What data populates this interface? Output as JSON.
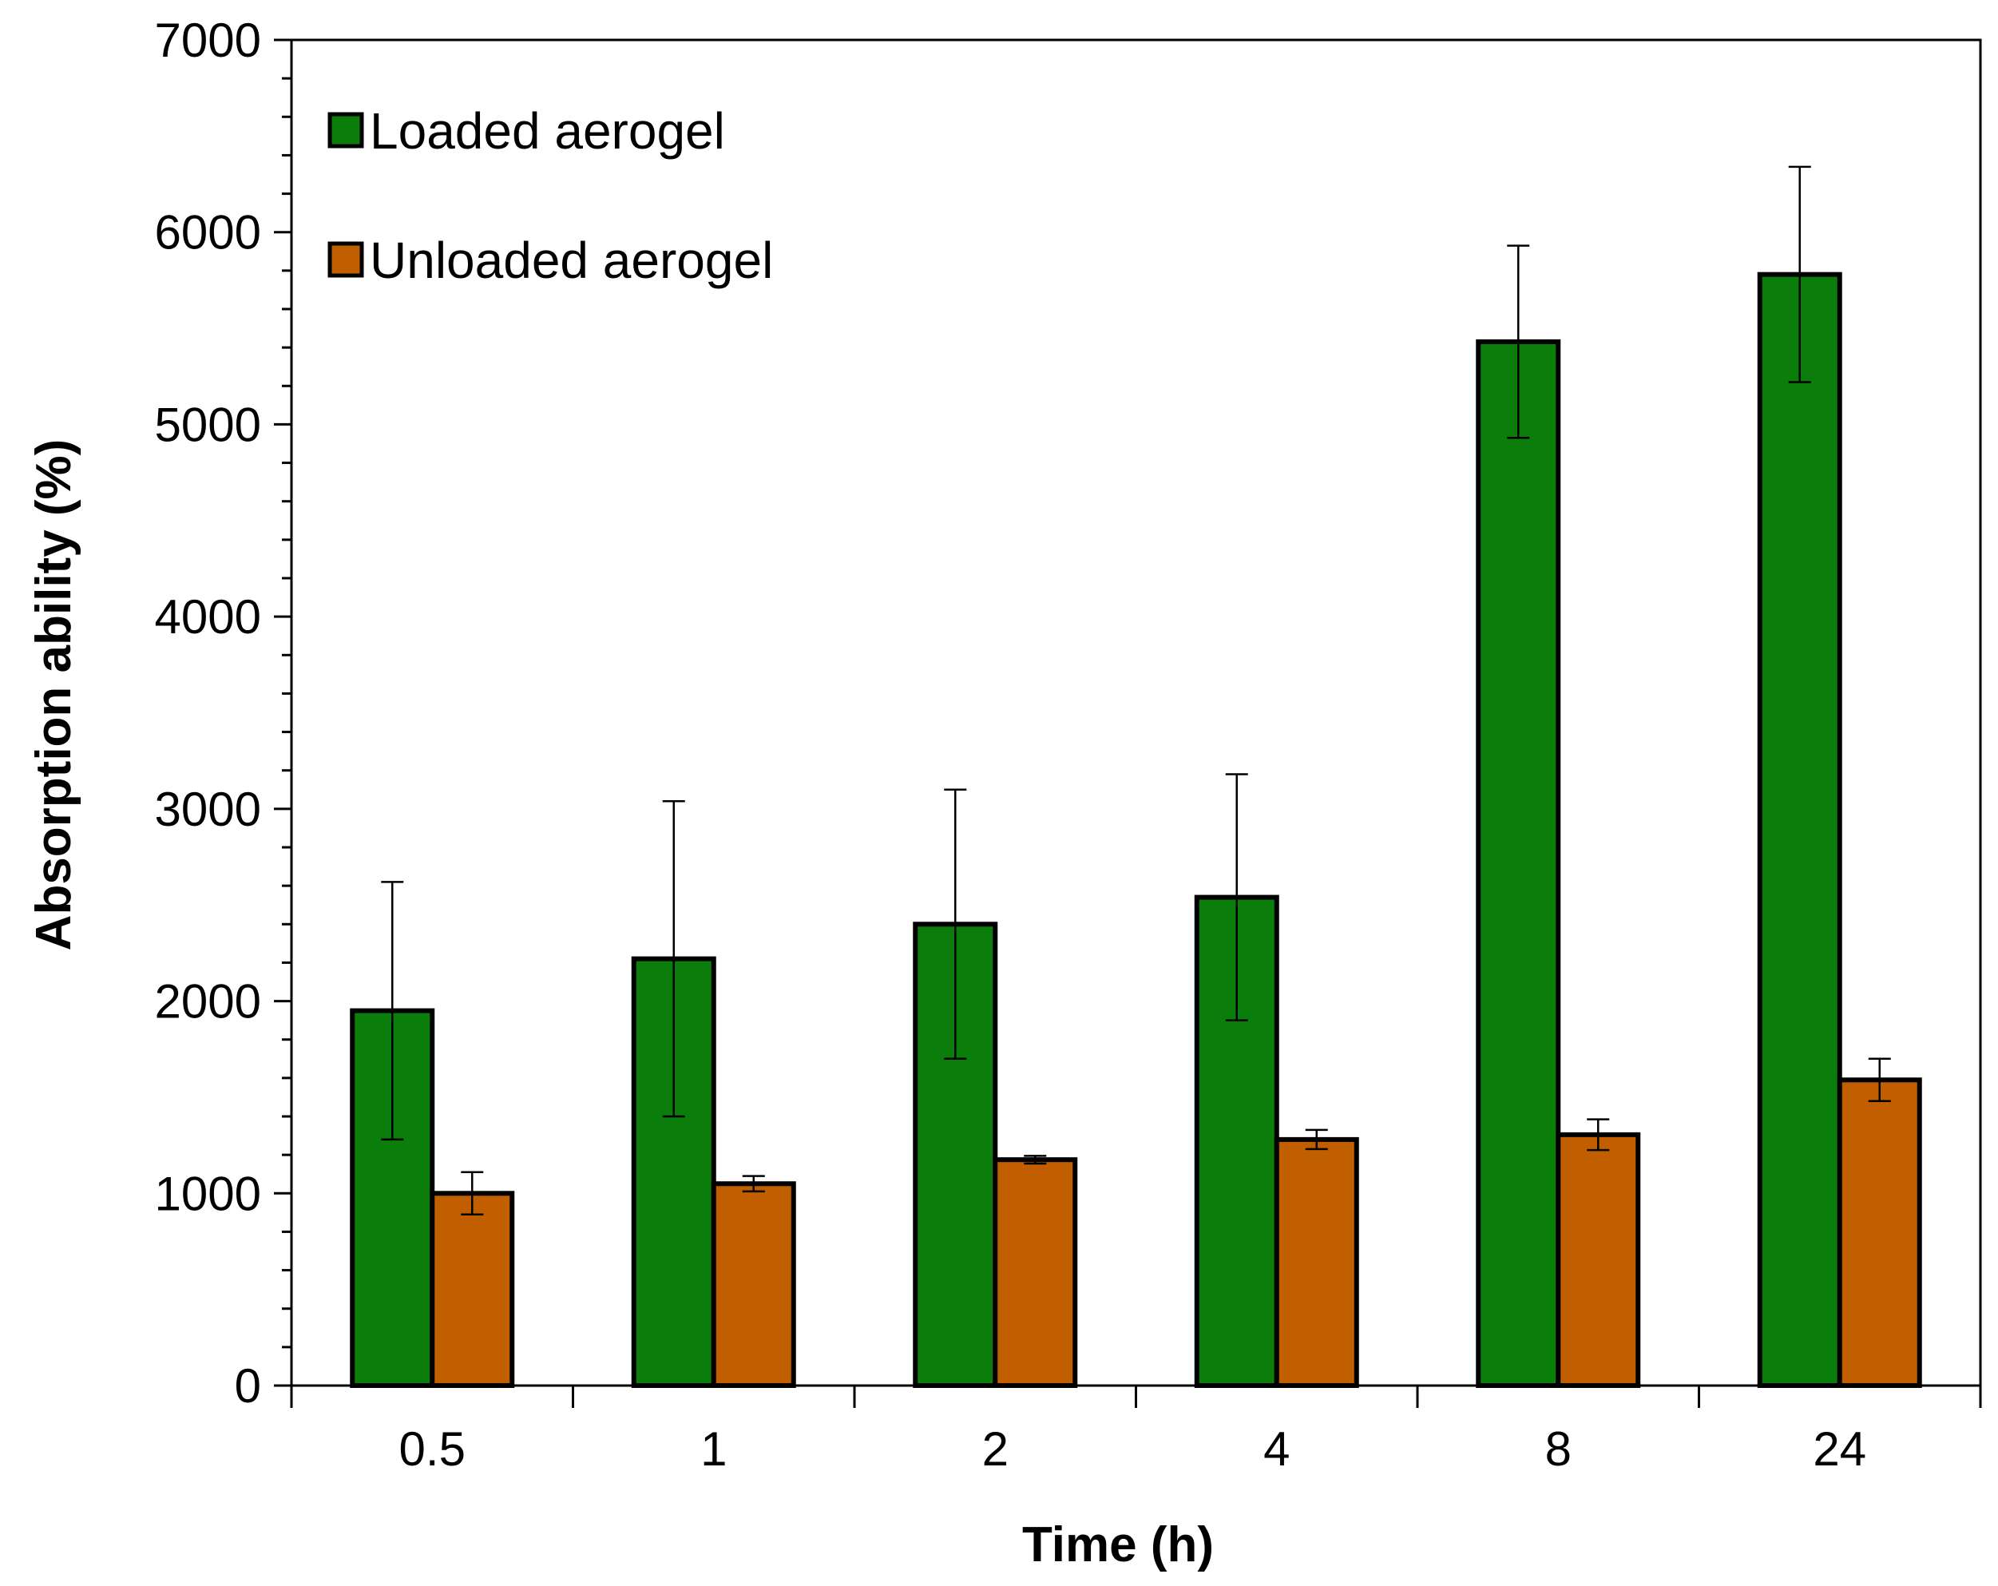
{
  "chart_data": {
    "type": "bar",
    "xlabel": "Time (h)",
    "ylabel": "Absorption ability (%)",
    "ylim": [
      0,
      7000
    ],
    "y_ticks": [
      0,
      1000,
      2000,
      3000,
      4000,
      5000,
      6000,
      7000
    ],
    "categories": [
      "0.5",
      "1",
      "2",
      "4",
      "8",
      "24"
    ],
    "series": [
      {
        "name": "Loaded aerogel",
        "color": "#0A7D0A",
        "values": [
          1950,
          2220,
          2400,
          2540,
          5430,
          5780
        ],
        "errors": [
          670,
          820,
          700,
          640,
          500,
          560
        ]
      },
      {
        "name": "Unloaded aerogel",
        "color": "#C05E00",
        "values": [
          1000,
          1050,
          1175,
          1280,
          1305,
          1590
        ],
        "errors": [
          110,
          40,
          20,
          50,
          80,
          110
        ]
      }
    ],
    "legend_position": "top-left"
  }
}
